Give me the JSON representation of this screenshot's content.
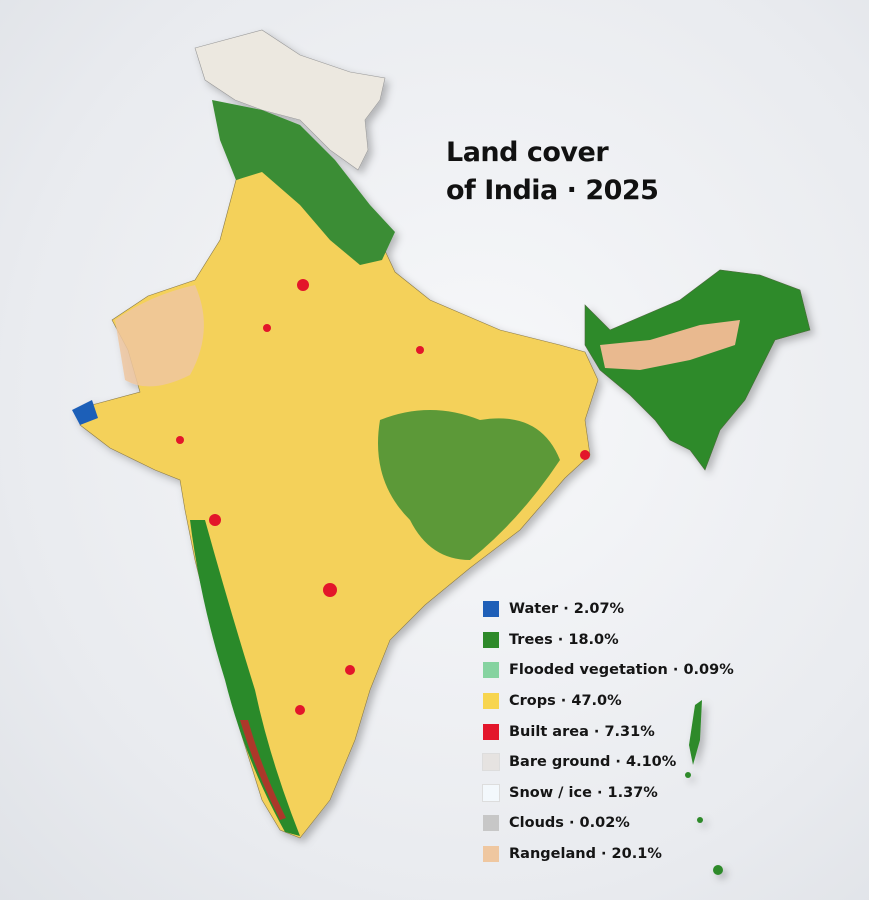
{
  "header": {
    "title": [
      "Land cover",
      "of India · 2025"
    ]
  },
  "legend": {
    "items": [
      {
        "text": "Water · 2.07%",
        "color": "#1f5fb8"
      },
      {
        "text": "Trees · 18.0%",
        "color": "#2e8a2a"
      },
      {
        "text": "Flooded vegetation · 0.09%",
        "color": "#86d3a0"
      },
      {
        "text": "Crops · 47.0%",
        "color": "#f7d54f"
      },
      {
        "text": "Built area · 7.31%",
        "color": "#e3162b"
      },
      {
        "text": "Bare ground · 4.10%",
        "color": "#e6e3e1"
      },
      {
        "text": "Snow / ice · 1.37%",
        "color": "#f3f8fc"
      },
      {
        "text": "Clouds · 0.02%",
        "color": "#c7c7c7"
      },
      {
        "text": "Rangeland · 20.1%",
        "color": "#efc7a0"
      }
    ]
  }
}
